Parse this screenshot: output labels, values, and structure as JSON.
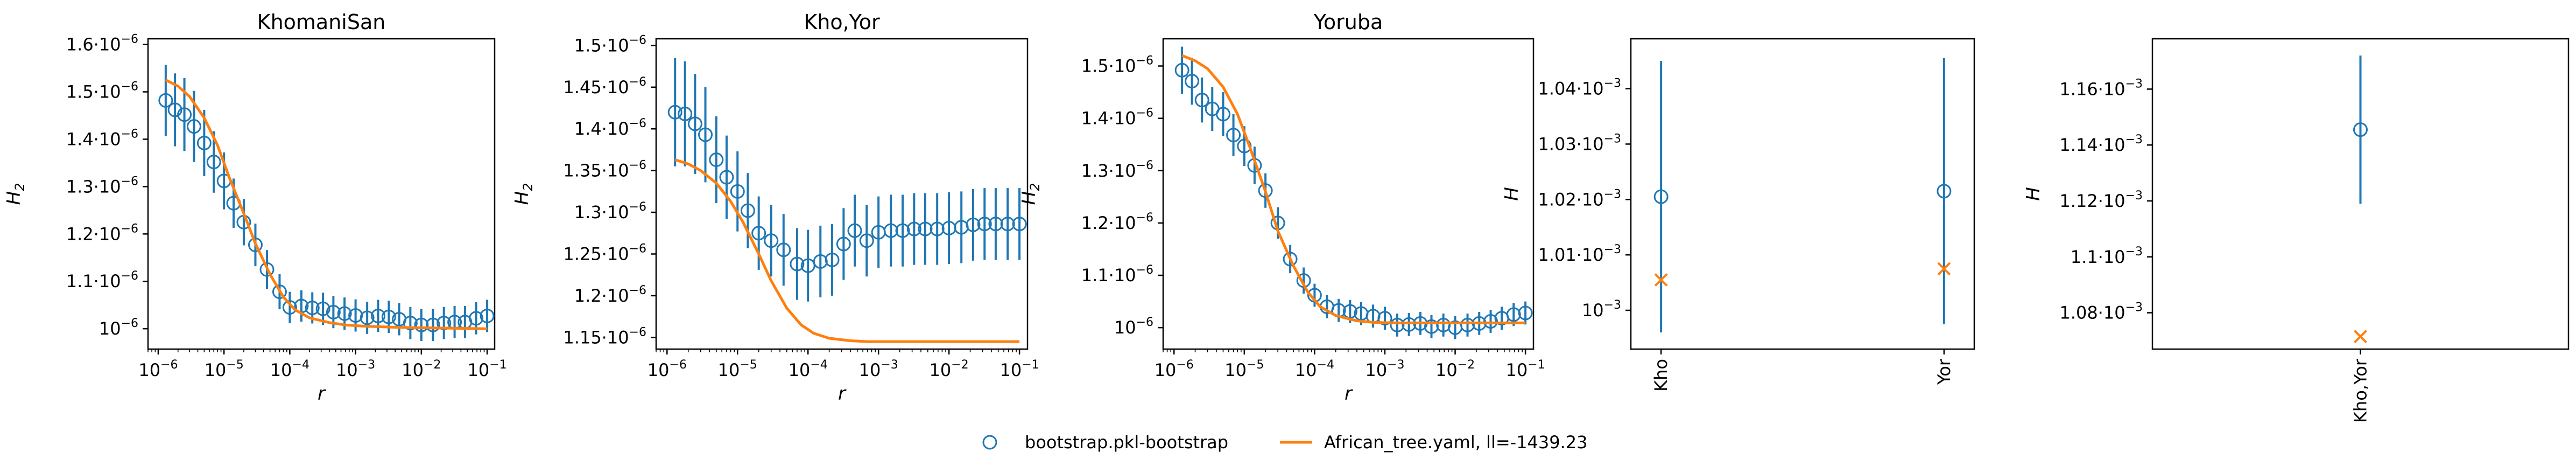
{
  "colors": {
    "bootstrap": "#1f77b4",
    "model": "#ff7f0e",
    "axis": "#000000"
  },
  "legend": {
    "placement": "bottom-center",
    "entries": [
      {
        "label": "bootstrap.pkl-bootstrap",
        "marker": "open-circle",
        "color": "#1f77b4"
      },
      {
        "label": "African_tree.yaml, ll=-1439.23",
        "marker": "line",
        "color": "#ff7f0e"
      }
    ]
  },
  "chart_data": [
    {
      "type": "scatter",
      "title": "KhomaniSan",
      "xlabel": "r",
      "ylabel": "H_2",
      "xscale": "log",
      "xlim": [
        7e-07,
        0.13
      ],
      "ylim": [
        9.57e-07,
        1.612e-06
      ],
      "xticks": [
        {
          "v": 1e-06,
          "e": "-6"
        },
        {
          "v": 1e-05,
          "e": "-5"
        },
        {
          "v": 0.0001,
          "e": "-4"
        },
        {
          "v": 0.001,
          "e": "-3"
        },
        {
          "v": 0.01,
          "e": "-2"
        },
        {
          "v": 0.1,
          "e": "-1"
        }
      ],
      "yticks": [
        {
          "v": 1e-06,
          "m": "",
          "e": "-6"
        },
        {
          "v": 1.1e-06,
          "m": "1.1",
          "e": "-6"
        },
        {
          "v": 1.2e-06,
          "m": "1.2",
          "e": "-6"
        },
        {
          "v": 1.3e-06,
          "m": "1.3",
          "e": "-6"
        },
        {
          "v": 1.4e-06,
          "m": "1.4",
          "e": "-6"
        },
        {
          "v": 1.5e-06,
          "m": "1.5",
          "e": "-6"
        },
        {
          "v": 1.6e-06,
          "m": "1.6",
          "e": "-6"
        }
      ],
      "series": [
        {
          "name": "bootstrap.pkl-bootstrap",
          "kind": "errorbar",
          "x": [
            1.3e-06,
            1.8e-06,
            2.5e-06,
            3.5e-06,
            5e-06,
            7e-06,
            1e-05,
            1.4e-05,
            2e-05,
            3e-05,
            4.5e-05,
            7e-05,
            0.0001,
            0.00015,
            0.00022,
            0.00032,
            0.00046,
            0.00068,
            0.001,
            0.0015,
            0.0022,
            0.0032,
            0.0046,
            0.0068,
            0.01,
            0.015,
            0.022,
            0.032,
            0.046,
            0.068,
            0.1
          ],
          "y": [
            1.482e-06,
            1.462e-06,
            1.452e-06,
            1.427e-06,
            1.392e-06,
            1.352e-06,
            1.312e-06,
            1.265e-06,
            1.225e-06,
            1.177e-06,
            1.125e-06,
            1.078e-06,
            1.045e-06,
            1.048e-06,
            1.044e-06,
            1.042e-06,
            1.035e-06,
            1.032e-06,
            1.028e-06,
            1.023e-06,
            1.027e-06,
            1.025e-06,
            1.02e-06,
            1.012e-06,
            1.008e-06,
            1.008e-06,
            1.012e-06,
            1.014e-06,
            1.014e-06,
            1.022e-06,
            1.027e-06
          ],
          "yerr": [
            7.5e-08,
            7.7e-08,
            7.7e-08,
            7.5e-08,
            7e-08,
            6.5e-08,
            6e-08,
            5.2e-08,
            4.9e-08,
            4.5e-08,
            4.1e-08,
            3.7e-08,
            3.3e-08,
            3.3e-08,
            3.3e-08,
            3.4e-08,
            3.4e-08,
            3.4e-08,
            3.4e-08,
            3.4e-08,
            3.4e-08,
            3.4e-08,
            3.4e-08,
            3.4e-08,
            3.4e-08,
            3.4e-08,
            3.4e-08,
            3.4e-08,
            3.4e-08,
            3.4e-08,
            3.4e-08
          ]
        },
        {
          "name": "African_tree.yaml, ll=-1439.23",
          "kind": "line",
          "x": [
            1.3e-06,
            2e-06,
            3e-06,
            5e-06,
            8e-06,
            1.2e-05,
            2e-05,
            3e-05,
            5e-05,
            8e-05,
            0.00012,
            0.0002,
            0.0004,
            0.0007,
            0.0015,
            0.004,
            0.01,
            0.03,
            0.1
          ],
          "y": [
            1.525e-06,
            1.512e-06,
            1.49e-06,
            1.445e-06,
            1.387e-06,
            1.32e-06,
            1.243e-06,
            1.18e-06,
            1.115e-06,
            1.067e-06,
            1.04e-06,
            1.023e-06,
            1.013e-06,
            1.008e-06,
            1.005e-06,
            1.003e-06,
            1.002e-06,
            1.001e-06,
            1e-06
          ]
        }
      ]
    },
    {
      "type": "scatter",
      "title": "Kho,Yor",
      "xlabel": "r",
      "ylabel": "H_2",
      "xscale": "log",
      "xlim": [
        7e-07,
        0.13
      ],
      "ylim": [
        1.136e-06,
        1.508e-06
      ],
      "xticks": [
        {
          "v": 1e-06,
          "e": "-6"
        },
        {
          "v": 1e-05,
          "e": "-5"
        },
        {
          "v": 0.0001,
          "e": "-4"
        },
        {
          "v": 0.001,
          "e": "-3"
        },
        {
          "v": 0.01,
          "e": "-2"
        },
        {
          "v": 0.1,
          "e": "-1"
        }
      ],
      "yticks": [
        {
          "v": 1.15e-06,
          "m": "1.15",
          "e": "-6"
        },
        {
          "v": 1.2e-06,
          "m": "1.2",
          "e": "-6"
        },
        {
          "v": 1.25e-06,
          "m": "1.25",
          "e": "-6"
        },
        {
          "v": 1.3e-06,
          "m": "1.3",
          "e": "-6"
        },
        {
          "v": 1.35e-06,
          "m": "1.35",
          "e": "-6"
        },
        {
          "v": 1.4e-06,
          "m": "1.4",
          "e": "-6"
        },
        {
          "v": 1.45e-06,
          "m": "1.45",
          "e": "-6"
        },
        {
          "v": 1.5e-06,
          "m": "1.5",
          "e": "-6"
        }
      ],
      "series": [
        {
          "name": "bootstrap.pkl-bootstrap",
          "kind": "errorbar",
          "x": [
            1.3e-06,
            1.8e-06,
            2.5e-06,
            3.5e-06,
            5e-06,
            7e-06,
            1e-05,
            1.4e-05,
            2e-05,
            3e-05,
            4.5e-05,
            7e-05,
            0.0001,
            0.00015,
            0.00022,
            0.00032,
            0.00046,
            0.00068,
            0.001,
            0.0015,
            0.0022,
            0.0032,
            0.0046,
            0.0068,
            0.01,
            0.015,
            0.022,
            0.032,
            0.046,
            0.068,
            0.1
          ],
          "y": [
            1.42e-06,
            1.418e-06,
            1.406e-06,
            1.393e-06,
            1.363e-06,
            1.342e-06,
            1.325e-06,
            1.302e-06,
            1.275e-06,
            1.266e-06,
            1.255e-06,
            1.238e-06,
            1.236e-06,
            1.241e-06,
            1.243e-06,
            1.262e-06,
            1.278e-06,
            1.266e-06,
            1.276e-06,
            1.278e-06,
            1.278e-06,
            1.28e-06,
            1.28e-06,
            1.28e-06,
            1.281e-06,
            1.282e-06,
            1.285e-06,
            1.286e-06,
            1.286e-06,
            1.286e-06,
            1.286e-06
          ],
          "yerr": [
            6.5e-08,
            6.3e-08,
            6e-08,
            5.7e-08,
            5.2e-08,
            5e-08,
            4.8e-08,
            4.5e-08,
            4.4e-08,
            4.3e-08,
            4.3e-08,
            4.3e-08,
            4.3e-08,
            4.3e-08,
            4.3e-08,
            4.3e-08,
            4.3e-08,
            4.3e-08,
            4.3e-08,
            4.3e-08,
            4.3e-08,
            4.3e-08,
            4.3e-08,
            4.3e-08,
            4.3e-08,
            4.3e-08,
            4.3e-08,
            4.3e-08,
            4.3e-08,
            4.3e-08,
            4.3e-08
          ]
        },
        {
          "name": "African_tree.yaml, ll=-1439.23",
          "kind": "line",
          "x": [
            1.3e-06,
            2e-06,
            3e-06,
            5e-06,
            8e-06,
            1.2e-05,
            2e-05,
            3e-05,
            5e-05,
            8e-05,
            0.00012,
            0.0002,
            0.0004,
            0.0007,
            0.0015,
            0.004,
            0.01,
            0.03,
            0.1
          ],
          "y": [
            1.363e-06,
            1.358e-06,
            1.35e-06,
            1.335e-06,
            1.313e-06,
            1.288e-06,
            1.25e-06,
            1.218e-06,
            1.185e-06,
            1.165e-06,
            1.155e-06,
            1.149e-06,
            1.146e-06,
            1.145e-06,
            1.145e-06,
            1.145e-06,
            1.145e-06,
            1.145e-06,
            1.145e-06
          ]
        }
      ]
    },
    {
      "type": "scatter",
      "title": "Yoruba",
      "xlabel": "r",
      "ylabel": "H_2",
      "xscale": "log",
      "xlim": [
        7e-07,
        0.13
      ],
      "ylim": [
        9.59e-07,
        1.552e-06
      ],
      "xticks": [
        {
          "v": 1e-06,
          "e": "-6"
        },
        {
          "v": 1e-05,
          "e": "-5"
        },
        {
          "v": 0.0001,
          "e": "-4"
        },
        {
          "v": 0.001,
          "e": "-3"
        },
        {
          "v": 0.01,
          "e": "-2"
        },
        {
          "v": 0.1,
          "e": "-1"
        }
      ],
      "yticks": [
        {
          "v": 1e-06,
          "m": "",
          "e": "-6"
        },
        {
          "v": 1.1e-06,
          "m": "1.1",
          "e": "-6"
        },
        {
          "v": 1.2e-06,
          "m": "1.2",
          "e": "-6"
        },
        {
          "v": 1.3e-06,
          "m": "1.3",
          "e": "-6"
        },
        {
          "v": 1.4e-06,
          "m": "1.4",
          "e": "-6"
        },
        {
          "v": 1.5e-06,
          "m": "1.5",
          "e": "-6"
        }
      ],
      "series": [
        {
          "name": "bootstrap.pkl-bootstrap",
          "kind": "errorbar",
          "x": [
            1.3e-06,
            1.8e-06,
            2.5e-06,
            3.5e-06,
            5e-06,
            7e-06,
            1e-05,
            1.4e-05,
            2e-05,
            3e-05,
            4.5e-05,
            7e-05,
            0.0001,
            0.00015,
            0.00022,
            0.00032,
            0.00046,
            0.00068,
            0.001,
            0.0015,
            0.0022,
            0.0032,
            0.0046,
            0.0068,
            0.01,
            0.015,
            0.022,
            0.032,
            0.046,
            0.068,
            0.1
          ],
          "y": [
            1.492e-06,
            1.471e-06,
            1.435e-06,
            1.418e-06,
            1.408e-06,
            1.368e-06,
            1.347e-06,
            1.31e-06,
            1.262e-06,
            1.2e-06,
            1.131e-06,
            1.09e-06,
            1.062e-06,
            1.04e-06,
            1.033e-06,
            1.031e-06,
            1.027e-06,
            1.022e-06,
            1.018e-06,
            1.005e-06,
            1.006e-06,
            1.008e-06,
            1.002e-06,
            1.005e-06,
            1e-06,
            1.005e-06,
            1.008e-06,
            1.012e-06,
            1.018e-06,
            1.025e-06,
            1.028e-06
          ],
          "yerr": [
            4.5e-08,
            4.5e-08,
            4.3e-08,
            4.2e-08,
            4.2e-08,
            4e-08,
            3.8e-08,
            3.6e-08,
            3.3e-08,
            3e-08,
            2.7e-08,
            2.5e-08,
            2.2e-08,
            2.2e-08,
            2.2e-08,
            2.2e-08,
            2.2e-08,
            2.2e-08,
            2.2e-08,
            2.2e-08,
            2.2e-08,
            2.2e-08,
            2.2e-08,
            2.2e-08,
            2.2e-08,
            2.2e-08,
            2.2e-08,
            2.2e-08,
            2.2e-08,
            2.2e-08,
            2.2e-08
          ]
        },
        {
          "name": "African_tree.yaml, ll=-1439.23",
          "kind": "line",
          "x": [
            1.3e-06,
            2e-06,
            3e-06,
            5e-06,
            8e-06,
            1.2e-05,
            2e-05,
            3e-05,
            5e-05,
            8e-05,
            0.00012,
            0.0002,
            0.0004,
            0.0007,
            0.0015,
            0.004,
            0.01,
            0.03,
            0.1
          ],
          "y": [
            1.52e-06,
            1.51e-06,
            1.495e-06,
            1.46e-06,
            1.408e-06,
            1.345e-06,
            1.26e-06,
            1.185e-06,
            1.118e-06,
            1.068e-06,
            1.04e-06,
            1.023e-06,
            1.013e-06,
            1.01e-06,
            1.009e-06,
            1.009e-06,
            1.009e-06,
            1.009e-06,
            1.009e-06
          ]
        }
      ]
    },
    {
      "type": "scatter",
      "title": "",
      "xlabel": "",
      "ylabel": "H",
      "xscale": "category",
      "categories": [
        "Kho",
        "Yor"
      ],
      "ylim": [
        0.000993,
        0.001049
      ],
      "yticks": [
        {
          "v": 0.001,
          "m": "",
          "e": "-3"
        },
        {
          "v": 0.00101,
          "m": "1.01",
          "e": "-3"
        },
        {
          "v": 0.00102,
          "m": "1.02",
          "e": "-3"
        },
        {
          "v": 0.00103,
          "m": "1.03",
          "e": "-3"
        },
        {
          "v": 0.00104,
          "m": "1.04",
          "e": "-3"
        }
      ],
      "series": [
        {
          "name": "bootstrap.pkl-bootstrap",
          "kind": "errorbar",
          "values": [
            0.0010205,
            0.0010215
          ],
          "yerr": [
            2.45e-05,
            2.4e-05
          ]
        },
        {
          "name": "African_tree.yaml, ll=-1439.23",
          "kind": "cross",
          "values": [
            0.0010055,
            0.0010075
          ]
        }
      ]
    },
    {
      "type": "scatter",
      "title": "",
      "xlabel": "",
      "ylabel": "H",
      "xscale": "category",
      "categories": [
        "Kho,Yor"
      ],
      "ylim": [
        0.001067,
        0.001178
      ],
      "yticks": [
        {
          "v": 0.00108,
          "m": "1.08",
          "e": "-3"
        },
        {
          "v": 0.0011,
          "m": "1.1",
          "e": "-3"
        },
        {
          "v": 0.00112,
          "m": "1.12",
          "e": "-3"
        },
        {
          "v": 0.00114,
          "m": "1.14",
          "e": "-3"
        },
        {
          "v": 0.00116,
          "m": "1.16",
          "e": "-3"
        }
      ],
      "series": [
        {
          "name": "bootstrap.pkl-bootstrap",
          "kind": "errorbar",
          "values": [
            0.0011455
          ],
          "yerr": [
            2.65e-05
          ]
        },
        {
          "name": "African_tree.yaml, ll=-1439.23",
          "kind": "cross",
          "values": [
            0.0010715
          ]
        }
      ]
    }
  ]
}
